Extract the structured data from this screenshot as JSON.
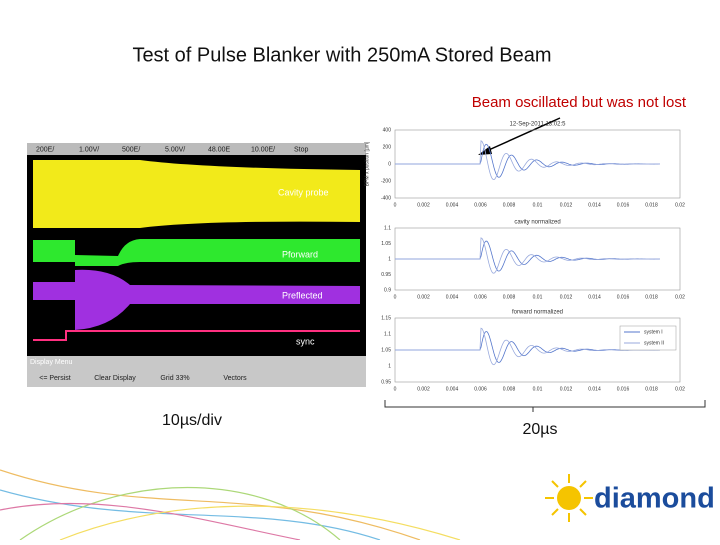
{
  "title": "Test of Pulse Blanker with 250mA Stored Beam",
  "annotation": "Beam oscillated but was not lost",
  "scope": {
    "settings": [
      "200E/",
      "1.00V/",
      "500E/",
      "5.00V/",
      "48.00E",
      "10.00E/",
      "Stop"
    ],
    "traces": [
      "Cavity probe",
      "Pforward",
      "Preflected",
      "sync"
    ],
    "menu_title": "Display Menu",
    "menu": [
      "<= Persist",
      "Clear Display",
      "Grid 33%",
      "Vectors"
    ]
  },
  "timebase": "10µs/div",
  "span": "20µs",
  "plots": [
    {
      "title": "12-Sep-2011 13:02:5",
      "ylabel": "BPM x position [µm]",
      "yticks": [
        "400",
        "200",
        "0",
        "-200",
        "-400"
      ]
    },
    {
      "title": "cavity normalized",
      "yticks": [
        "1.1",
        "1.05",
        "1",
        "0.95",
        "0.9"
      ]
    },
    {
      "title": "forward normalized",
      "yticks": [
        "1.15",
        "1.1",
        "1.05",
        "1",
        "0.95"
      ],
      "legend": [
        "system I",
        "system II"
      ]
    }
  ],
  "xticks": [
    "0",
    "0.002",
    "0.004",
    "0.006",
    "0.008",
    "0.01",
    "0.012",
    "0.014",
    "0.016",
    "0.018",
    "0.02"
  ],
  "logo": "diamond"
}
